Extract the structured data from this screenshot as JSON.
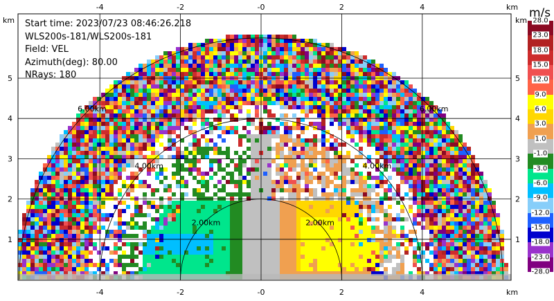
{
  "info": {
    "start_time": "Start time: 2023/07/23 08:46:26.218",
    "instrument": "WLS200s-181/WLS200s-181",
    "field": "Field: VEL",
    "azimuth": "Azimuth(deg): 80.00",
    "nrays": "NRays: 180"
  },
  "axes": {
    "x_ticks": [
      "-4",
      "-2",
      "-0",
      "2",
      "4"
    ],
    "y_ticks": [
      "1",
      "2",
      "3",
      "4",
      "5"
    ],
    "unit_label": "km"
  },
  "range_rings": [
    "2.00km",
    "4.00km",
    "6.00km"
  ],
  "colorbar": {
    "title": "m/s",
    "labels": [
      "28.0",
      "23.0",
      "18.0",
      "15.0",
      "12.0",
      "9.0",
      "6.0",
      "3.0",
      "1.0",
      "-1.0",
      "-3.0",
      "-6.0",
      "-9.0",
      "-12.0",
      "-15.0",
      "-18.0",
      "-23.0",
      "-28.0"
    ],
    "colors": [
      "#8b0a23",
      "#b22222",
      "#cd2c2c",
      "#f05050",
      "#ff6347",
      "#ffff00",
      "#ffd700",
      "#f0a050",
      "#c0c0c0",
      "#228b22",
      "#00e68c",
      "#00bfff",
      "#87cefa",
      "#1e60ff",
      "#0000cd",
      "#9932cc",
      "#800080"
    ]
  }
}
